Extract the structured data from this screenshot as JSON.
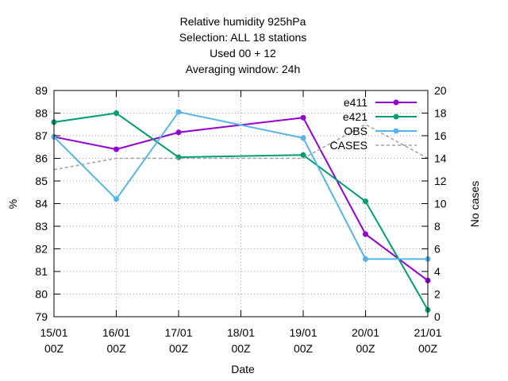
{
  "chart_data": {
    "type": "line",
    "title_lines": [
      "Relative humidity 925hPa",
      "Selection: ALL      18 stations",
      "Used  00  + 12",
      "Averaging window: 24h"
    ],
    "xlabel": "Date",
    "ylabel": "%",
    "y2label": "No cases",
    "x": [
      "15/01 00Z",
      "16/01 00Z",
      "17/01 00Z",
      "18/01 00Z",
      "19/01 00Z",
      "20/01 00Z",
      "21/01 00Z"
    ],
    "x_tick_lines": [
      [
        "15/01",
        "00Z"
      ],
      [
        "16/01",
        "00Z"
      ],
      [
        "17/01",
        "00Z"
      ],
      [
        "18/01",
        "00Z"
      ],
      [
        "19/01",
        "00Z"
      ],
      [
        "20/01",
        "00Z"
      ],
      [
        "21/01",
        "00Z"
      ]
    ],
    "ylim": [
      79,
      89
    ],
    "yticks": [
      79,
      80,
      81,
      82,
      83,
      84,
      85,
      86,
      87,
      88,
      89
    ],
    "y2lim": [
      0,
      20
    ],
    "y2ticks": [
      0,
      2,
      4,
      6,
      8,
      10,
      12,
      14,
      16,
      18,
      20
    ],
    "grid": true,
    "legend_position": "top-right",
    "series": [
      {
        "name": "e411",
        "axis": "y",
        "color": "#9400d3",
        "style": "solid",
        "marker": true,
        "values": [
          86.95,
          86.4,
          87.15,
          null,
          87.8,
          82.65,
          80.6
        ]
      },
      {
        "name": "e421",
        "axis": "y",
        "color": "#009e73",
        "style": "solid",
        "marker": true,
        "values": [
          87.6,
          88.0,
          86.05,
          null,
          86.15,
          84.1,
          79.3
        ]
      },
      {
        "name": "OBS",
        "axis": "y",
        "color": "#56b4e9",
        "style": "solid",
        "marker": true,
        "values": [
          86.95,
          84.2,
          88.05,
          null,
          86.9,
          81.55,
          81.55
        ]
      },
      {
        "name": "CASES",
        "axis": "y2",
        "color": "#a0a0a0",
        "style": "dashed",
        "marker": false,
        "values": [
          13,
          14,
          14,
          14,
          14,
          17,
          14
        ]
      }
    ]
  }
}
